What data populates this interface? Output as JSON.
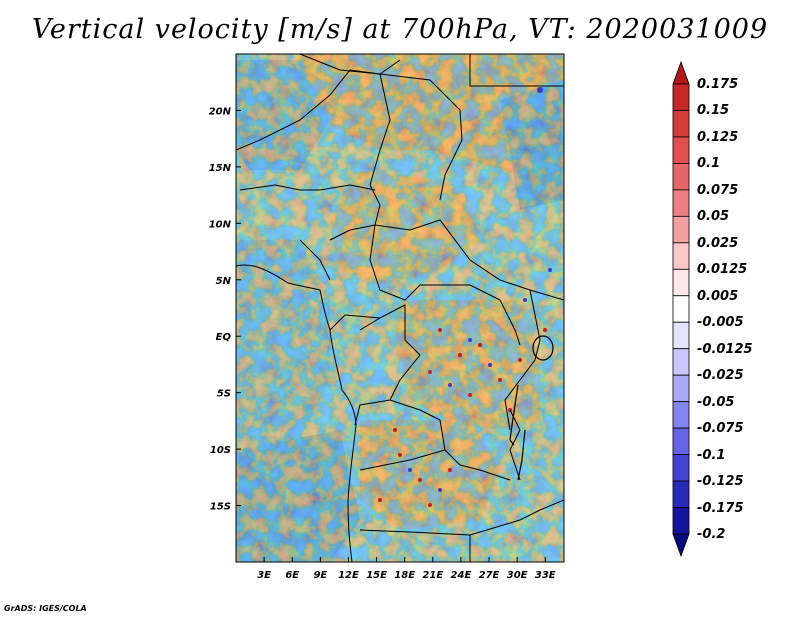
{
  "title": "Vertical velocity [m/s] at 700hPa, VT: 2020031009",
  "footer": "GrADS: IGES/COLA",
  "map": {
    "variable": "Vertical velocity",
    "units": "m/s",
    "level": "700hPa",
    "valid_time": "2020031009",
    "lon_range": [
      0,
      35
    ],
    "lat_range": [
      -20,
      25
    ],
    "lon_ticks": [
      "3E",
      "6E",
      "9E",
      "12E",
      "15E",
      "18E",
      "21E",
      "24E",
      "27E",
      "30E",
      "33E"
    ],
    "lat_ticks": [
      "20N",
      "15N",
      "10N",
      "5N",
      "EQ",
      "5S",
      "10S",
      "15S"
    ]
  },
  "colorbar": {
    "labels": [
      "0.175",
      "0.15",
      "0.125",
      "0.1",
      "0.075",
      "0.05",
      "0.025",
      "0.0125",
      "0.005",
      "-0.005",
      "-0.0125",
      "-0.025",
      "-0.05",
      "-0.075",
      "-0.1",
      "-0.125",
      "-0.175",
      "-0.2"
    ],
    "colors": [
      "#b01818",
      "#c42828",
      "#d43c3c",
      "#e05050",
      "#e46868",
      "#ec8080",
      "#f4a0a0",
      "#fac8c8",
      "#fde6e6",
      "#ffffff",
      "#e4e4fe",
      "#c8c8fc",
      "#a8a8f6",
      "#8484f0",
      "#6464e4",
      "#4444d0",
      "#2a2ab8",
      "#14149c",
      "#0a0a80"
    ]
  }
}
